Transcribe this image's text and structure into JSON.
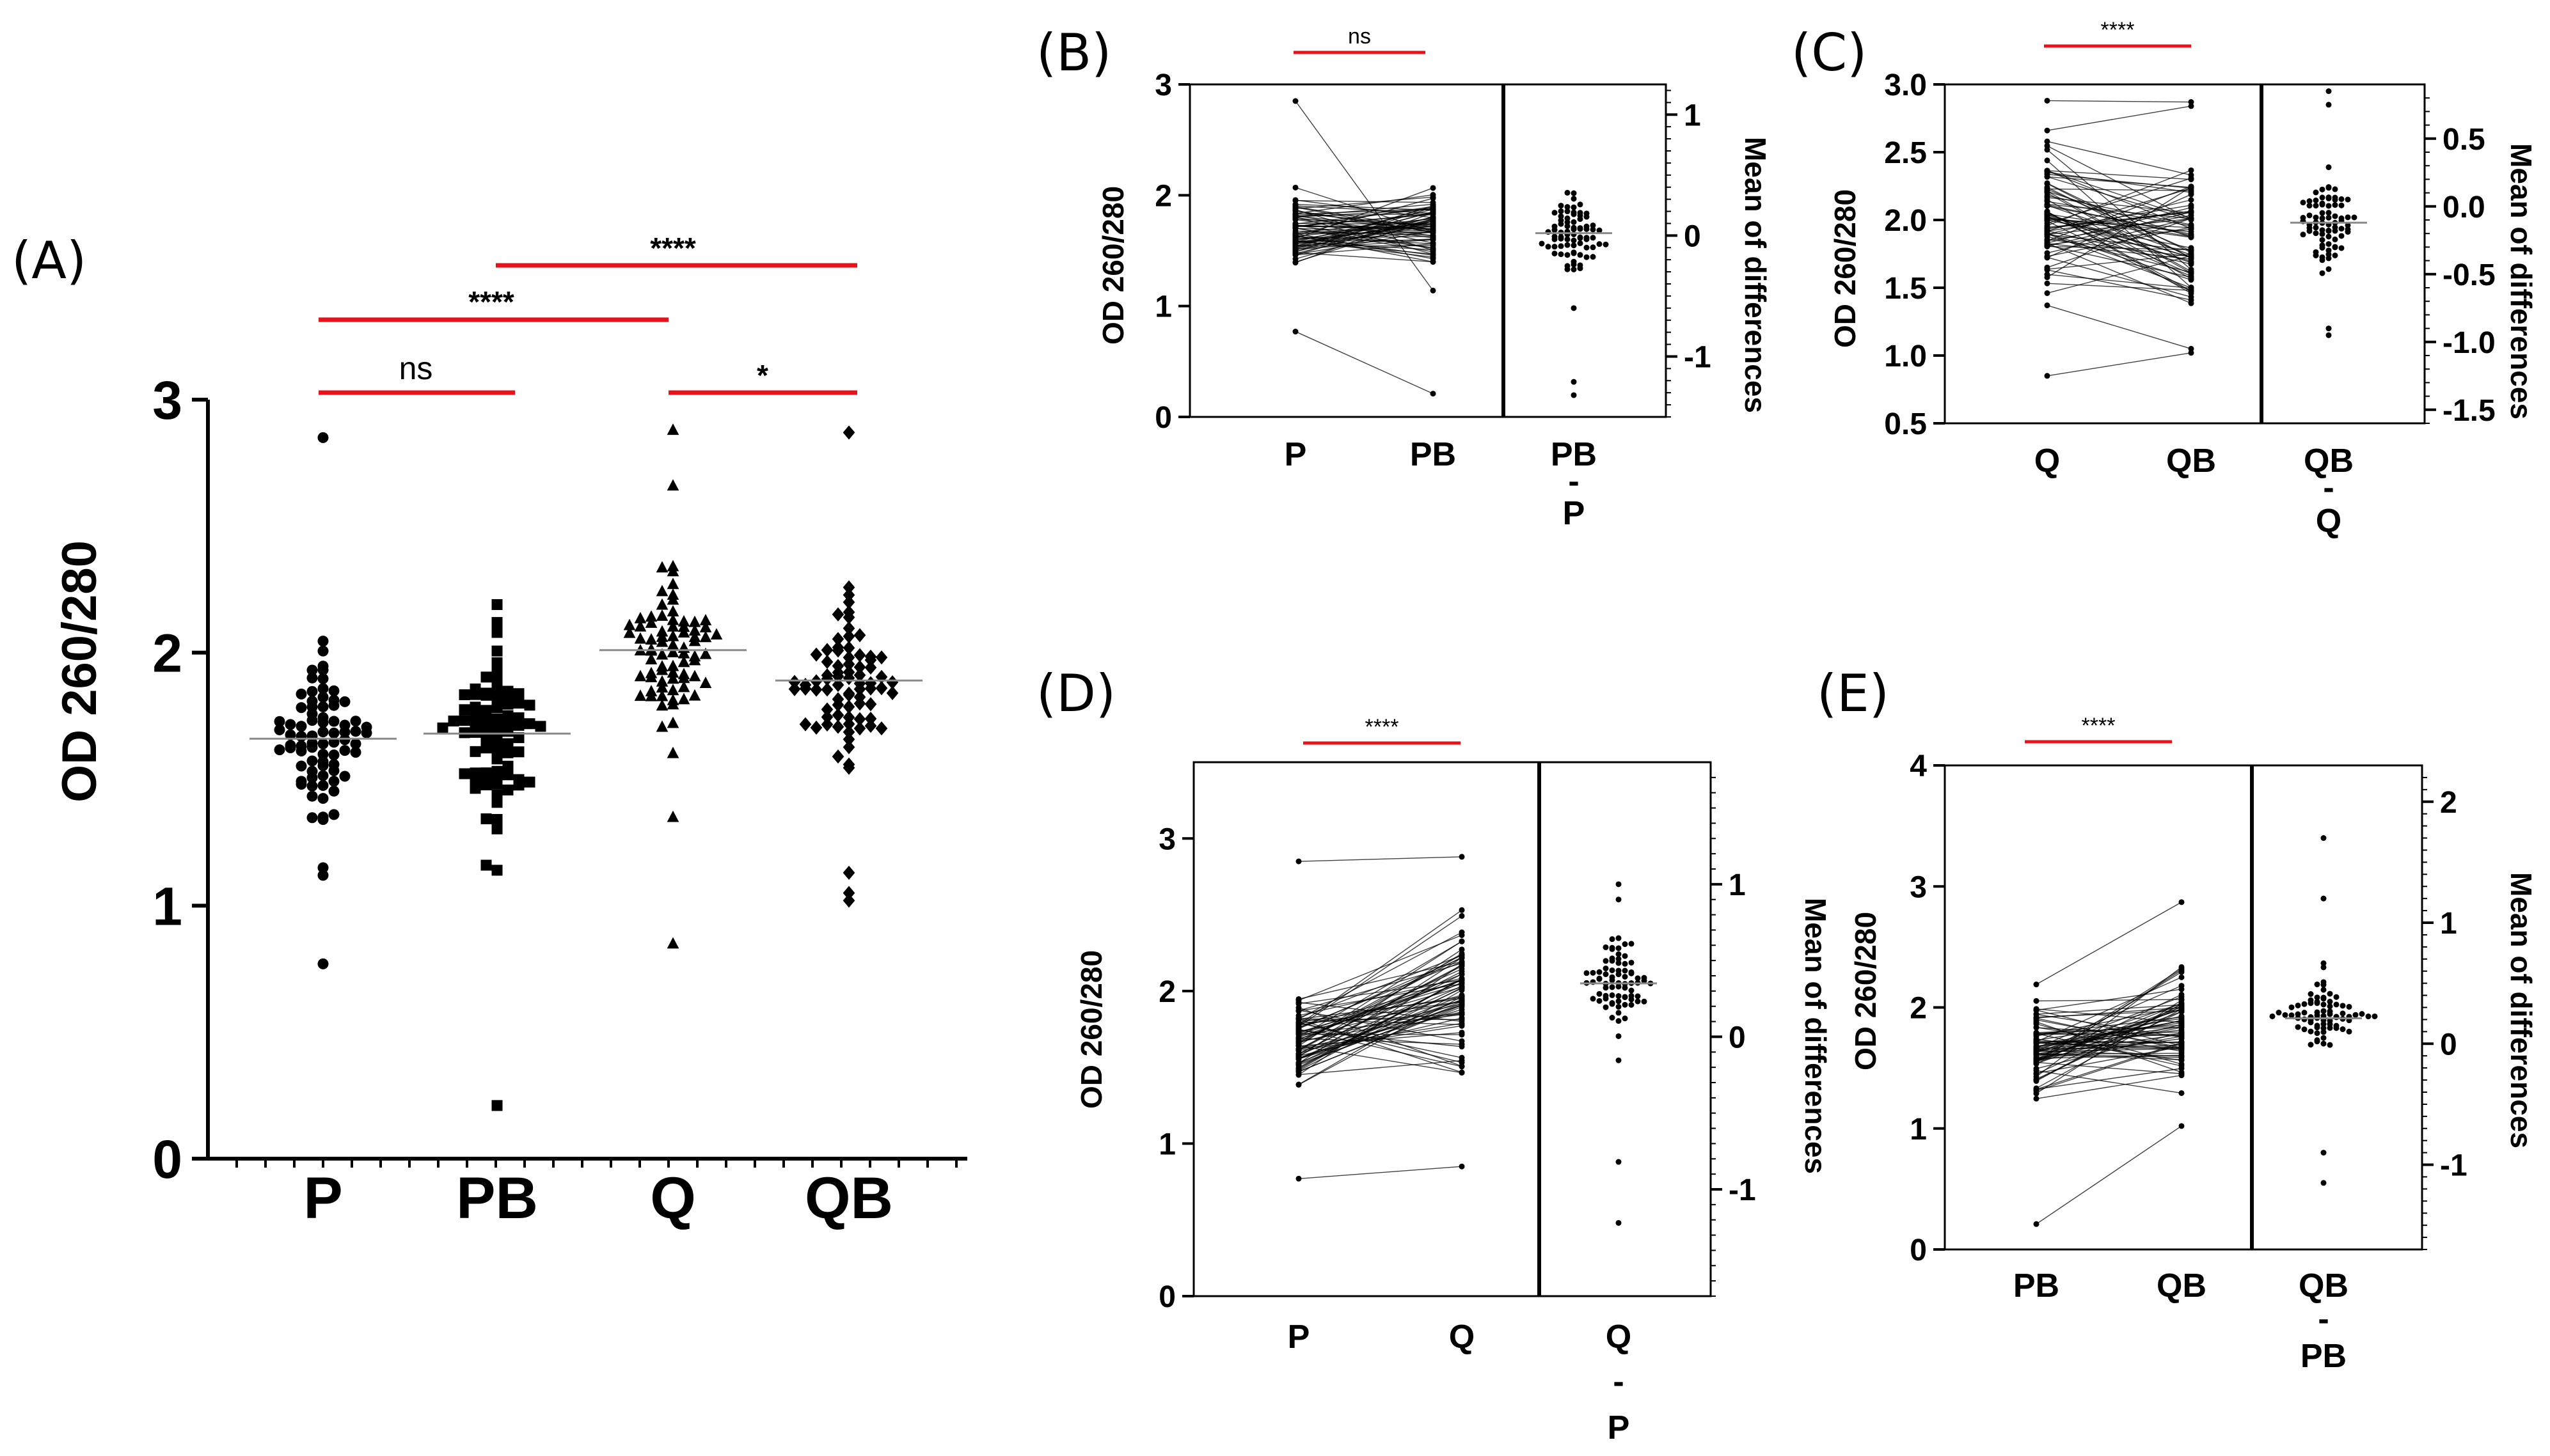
{
  "colors": {
    "significance_bar": "#e8121b",
    "points": "#000000",
    "mean_line": "#8a8a8a"
  },
  "chart_data": [
    {
      "panel": "(A)",
      "type": "scatter",
      "ylabel": "OD 260/280",
      "ylim": [
        0,
        3
      ],
      "yticks": [
        "0",
        "1",
        "2",
        "3"
      ],
      "categories": [
        "P",
        "PB",
        "Q",
        "QB"
      ],
      "markers": [
        "circle",
        "square",
        "triangle",
        "diamond"
      ],
      "means": [
        1.66,
        1.68,
        2.01,
        1.89
      ],
      "series": [
        {
          "name": "P",
          "n": 80,
          "mean": 1.66,
          "min": 0.77,
          "max": 2.85,
          "outliers": [
            0.77,
            2.85,
            1.12,
            1.15
          ]
        },
        {
          "name": "PB",
          "n": 80,
          "mean": 1.68,
          "min": 0.21,
          "max": 2.19,
          "outliers": [
            0.21,
            1.14,
            1.16,
            2.19
          ]
        },
        {
          "name": "Q",
          "n": 80,
          "mean": 2.01,
          "min": 0.85,
          "max": 2.88,
          "outliers": [
            0.85,
            1.35,
            2.66,
            2.88
          ]
        },
        {
          "name": "QB",
          "n": 80,
          "mean": 1.89,
          "min": 1.02,
          "max": 2.87,
          "outliers": [
            1.02,
            1.05,
            1.13,
            2.87
          ]
        }
      ],
      "comparisons": [
        {
          "from": "P",
          "to": "PB",
          "label": "ns"
        },
        {
          "from": "P",
          "to": "Q",
          "label": "****"
        },
        {
          "from": "PB",
          "to": "QB",
          "label": "****"
        },
        {
          "from": "Q",
          "to": "QB",
          "label": "*"
        }
      ]
    },
    {
      "panel": "(B)",
      "type": "scatter",
      "ylabel": "OD 260/280",
      "ylim": [
        0,
        3
      ],
      "yticks": [
        "0",
        "1",
        "2",
        "3"
      ],
      "groups": [
        "P",
        "PB"
      ],
      "means": [
        1.66,
        1.68
      ],
      "diff_label": [
        "PB",
        "-",
        "P"
      ],
      "diff_ylabel": "Mean of differences",
      "diff_ylim": [
        -1.5,
        1.25
      ],
      "diff_yticks": [
        "-1",
        "0",
        "1"
      ],
      "diff_mean": 0.02,
      "comparison": "ns"
    },
    {
      "panel": "(C)",
      "type": "scatter",
      "ylabel": "OD 260/280",
      "ylim": [
        0.5,
        3.0
      ],
      "yticks": [
        "0.5",
        "1.0",
        "1.5",
        "2.0",
        "2.5",
        "3.0"
      ],
      "groups": [
        "Q",
        "QB"
      ],
      "means": [
        2.01,
        1.89
      ],
      "diff_label": [
        "QB",
        "-",
        "Q"
      ],
      "diff_ylabel": "Mean of differences",
      "diff_ylim": [
        -1.6,
        0.9
      ],
      "diff_yticks": [
        "-1.5",
        "-1.0",
        "-0.5",
        "0.0",
        "0.5"
      ],
      "diff_mean": -0.12,
      "comparison": "****"
    },
    {
      "panel": "(D)",
      "type": "scatter",
      "ylabel": "OD 260/280",
      "ylim": [
        0,
        3.5
      ],
      "yticks": [
        "0",
        "1",
        "2",
        "3"
      ],
      "groups": [
        "P",
        "Q"
      ],
      "means": [
        1.66,
        2.01
      ],
      "diff_label": [
        "Q",
        "-",
        "P"
      ],
      "diff_ylabel": "Mean of differences",
      "diff_ylim": [
        -1.7,
        1.8
      ],
      "diff_yticks": [
        "-1",
        "0",
        "1"
      ],
      "diff_mean": 0.35,
      "comparison": "****"
    },
    {
      "panel": "(E)",
      "type": "scatter",
      "ylabel": "OD 260/280",
      "ylim": [
        0,
        4
      ],
      "yticks": [
        "0",
        "1",
        "2",
        "3",
        "4"
      ],
      "groups": [
        "PB",
        "QB"
      ],
      "means": [
        1.68,
        1.89
      ],
      "diff_label": [
        "QB",
        "-",
        "PB"
      ],
      "diff_ylabel": "Mean of differences",
      "diff_ylim": [
        -1.7,
        2.3
      ],
      "diff_yticks": [
        "-1",
        "0",
        "1",
        "2"
      ],
      "diff_mean": 0.21,
      "comparison": "****"
    }
  ]
}
